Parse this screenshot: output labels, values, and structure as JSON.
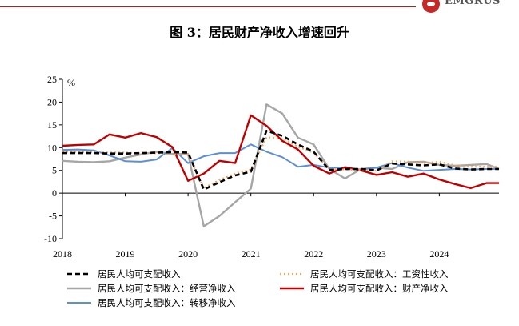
{
  "header": {
    "brand_text": "EMGRUS"
  },
  "figure": {
    "title": "图 3：居民财产净收入增速回升"
  },
  "colors": {
    "disposable": "#000000",
    "wage": "#f4a460",
    "business": "#a6a6a6",
    "property": "#c00000",
    "transfer": "#5b8fd6"
  },
  "chart_data": {
    "type": "line",
    "title": "",
    "ylabel": "%",
    "xlabel": "",
    "ylim": [
      -10,
      25
    ],
    "yticks": [
      -10,
      -5,
      0,
      5,
      10,
      15,
      20,
      25
    ],
    "ytick_labels": [
      "-10",
      "-5",
      "0",
      "5",
      "10",
      "15",
      "20",
      "25"
    ],
    "xlim": [
      2018.0,
      2024.95
    ],
    "xticks": [
      2018,
      2019,
      2020,
      2021,
      2022,
      2023,
      2024
    ],
    "xtick_labels": [
      "2018",
      "2019",
      "2020",
      "2021",
      "2022",
      "2023",
      "2024"
    ],
    "legend_position": "bottom",
    "x": [
      2018.0,
      2018.25,
      2018.5,
      2018.75,
      2019.0,
      2019.25,
      2019.5,
      2019.75,
      2020.0,
      2020.25,
      2020.5,
      2020.75,
      2021.0,
      2021.25,
      2021.5,
      2021.75,
      2022.0,
      2022.25,
      2022.5,
      2022.75,
      2023.0,
      2023.25,
      2023.5,
      2023.75,
      2024.0,
      2024.25,
      2024.5,
      2024.75,
      2024.95
    ],
    "series": [
      {
        "name": "居民人均可支配收入",
        "color": "#000000",
        "dash": "6,4",
        "width": 2.6,
        "values": [
          8.8,
          8.8,
          8.8,
          8.7,
          8.7,
          8.8,
          8.9,
          9.0,
          8.9,
          0.8,
          2.4,
          3.9,
          4.7,
          13.7,
          12.6,
          10.7,
          9.1,
          5.1,
          5.3,
          5.3,
          5.0,
          6.5,
          6.3,
          6.1,
          6.3,
          5.4,
          5.2,
          5.3,
          5.3
        ]
      },
      {
        "name": "居民人均可支配收入：工资性收入",
        "color": "#f4a460",
        "dash": "2,3",
        "width": 2.2,
        "values": [
          9.2,
          9.0,
          9.0,
          8.9,
          8.9,
          8.7,
          8.8,
          8.6,
          8.5,
          1.1,
          2.9,
          4.3,
          5.2,
          12.3,
          12.0,
          10.2,
          8.9,
          5.3,
          5.2,
          5.1,
          4.9,
          7.0,
          6.9,
          6.6,
          6.9,
          6.1,
          5.8,
          5.8,
          5.8
        ]
      },
      {
        "name": "居民人均可支配收入：经营净收入",
        "color": "#a6a6a6",
        "dash": "",
        "width": 2.4,
        "values": [
          7.1,
          6.9,
          6.8,
          7.0,
          7.8,
          8.5,
          9.1,
          8.6,
          8.6,
          -7.3,
          -5.0,
          -2.0,
          1.0,
          19.5,
          17.5,
          12.2,
          10.7,
          5.3,
          3.2,
          5.3,
          5.6,
          5.3,
          6.8,
          6.9,
          6.2,
          6.0,
          6.2,
          6.4,
          5.3
        ]
      },
      {
        "name": "居民人均可支配收入：财产净收入",
        "color": "#c00000",
        "dash": "",
        "width": 2.4,
        "values": [
          10.4,
          10.6,
          10.7,
          12.9,
          12.2,
          13.2,
          12.3,
          10.1,
          2.7,
          4.3,
          7.1,
          6.6,
          17.1,
          14.8,
          11.5,
          9.6,
          6.0,
          4.3,
          5.7,
          5.0,
          4.0,
          4.6,
          3.6,
          4.3,
          3.0,
          2.0,
          1.1,
          2.2,
          2.2
        ]
      },
      {
        "name": "居民人均可支配收入：转移净收入",
        "color": "#5b8fd6",
        "dash": "",
        "width": 2.0,
        "values": [
          9.5,
          9.6,
          9.4,
          8.3,
          7.0,
          6.9,
          7.4,
          9.9,
          6.6,
          8.1,
          8.8,
          8.8,
          10.7,
          9.1,
          7.9,
          5.8,
          6.2,
          5.6,
          5.6,
          5.2,
          5.6,
          6.6,
          5.6,
          4.9,
          5.1,
          5.3,
          5.2,
          5.3,
          5.3
        ]
      }
    ]
  }
}
